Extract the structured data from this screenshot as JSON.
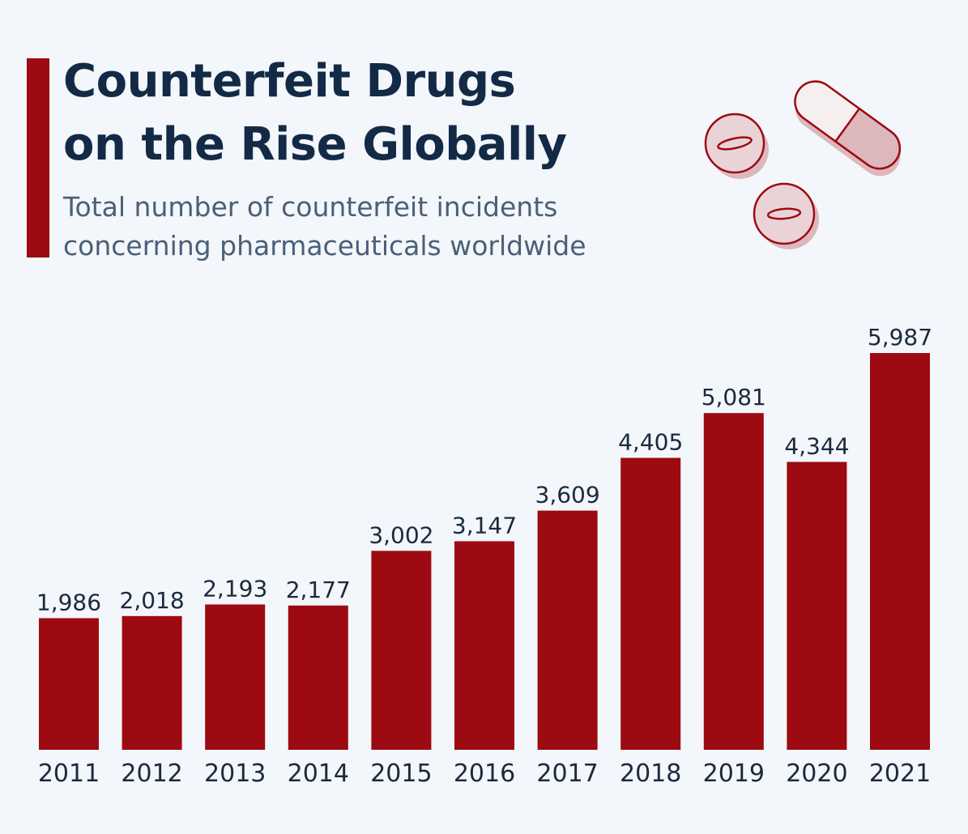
{
  "header": {
    "title_line1": "Counterfeit Drugs",
    "title_line2": "on the Rise Globally",
    "subtitle_line1": "Total number of counterfeit incidents",
    "subtitle_line2": "concerning pharmaceuticals worldwide"
  },
  "colors": {
    "bar": "#9d0a12",
    "accent": "#9d0a12",
    "title": "#132a46",
    "subtitle": "#4b5f78",
    "labels": "#1b2a3d",
    "background": "#f3f6fa",
    "pill_fill": "#dcb8bd",
    "pill_stroke": "#9d0a12"
  },
  "illustration": {
    "icons": [
      "pill-tablet-icon",
      "pill-capsule-icon",
      "pill-tablet-icon"
    ]
  },
  "chart_data": {
    "type": "bar",
    "title": "Counterfeit Drugs on the Rise Globally",
    "subtitle": "Total number of counterfeit incidents concerning pharmaceuticals worldwide",
    "categories": [
      "2011",
      "2012",
      "2013",
      "2014",
      "2015",
      "2016",
      "2017",
      "2018",
      "2019",
      "2020",
      "2021"
    ],
    "values": [
      1986,
      2018,
      2193,
      2177,
      3002,
      3147,
      3609,
      4405,
      5081,
      4344,
      5987
    ],
    "value_labels": [
      "1,986",
      "2,018",
      "2,193",
      "2,177",
      "3,002",
      "3,147",
      "3,609",
      "4,405",
      "5,081",
      "4,344",
      "5,987"
    ],
    "xlabel": "",
    "ylabel": "",
    "ylim": [
      0,
      6000
    ],
    "grid": false,
    "legend": "none"
  }
}
